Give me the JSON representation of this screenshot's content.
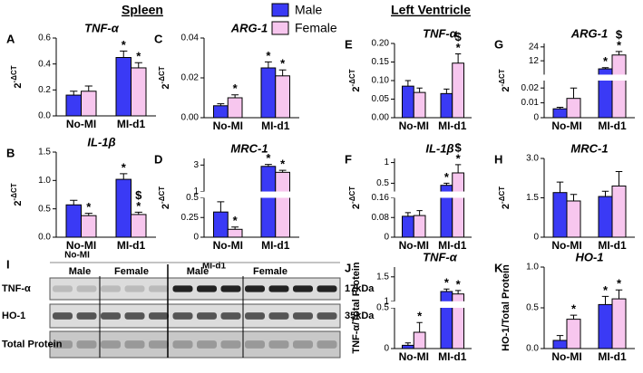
{
  "header": {
    "left": "Spleen",
    "right": "Left Ventricle"
  },
  "legend": [
    {
      "name": "Male",
      "color": "#3a3af5"
    },
    {
      "name": "Female",
      "color": "#f7c6ee"
    }
  ],
  "chart_data": [
    {
      "type": "bar",
      "panel": "A",
      "title": "TNF-α",
      "ylabel": "2",
      "ylabel_sup": "-ΔCT",
      "categories": [
        "No-MI",
        "MI-d1"
      ],
      "series": [
        {
          "color": "#3a3af5",
          "values": [
            0.16,
            0.45
          ],
          "errors": [
            0.03,
            0.05
          ],
          "sig": [
            null,
            "*"
          ]
        },
        {
          "color": "#f7c6ee",
          "values": [
            0.19,
            0.37
          ],
          "errors": [
            0.04,
            0.04
          ],
          "sig": [
            null,
            "*"
          ]
        }
      ],
      "ylim": [
        0,
        0.6
      ],
      "yticks": [
        {
          "value": 0,
          "label": "0.0"
        },
        0.2,
        0.4,
        0.6
      ]
    },
    {
      "type": "bar",
      "panel": "B",
      "title": "IL-1β",
      "ylabel": "2",
      "ylabel_sup": "-ΔCT",
      "categories": [
        "No-MI",
        "MI-d1"
      ],
      "series": [
        {
          "color": "#3a3af5",
          "values": [
            0.57,
            1.02
          ],
          "errors": [
            0.08,
            0.1
          ],
          "sig": [
            null,
            "*"
          ]
        },
        {
          "color": "#f7c6ee",
          "values": [
            0.38,
            0.4
          ],
          "errors": [
            0.04,
            0.04
          ],
          "sig": [
            "*",
            [
              "*",
              "$"
            ]
          ]
        }
      ],
      "ylim": [
        0,
        1.5
      ],
      "yticks": [
        {
          "value": 0,
          "label": "0.0"
        },
        0.5,
        {
          "value": 1,
          "label": "1.0"
        },
        1.5
      ]
    },
    {
      "type": "bar",
      "panel": "C",
      "title": "ARG-1",
      "ylabel": "2",
      "ylabel_sup": "-ΔCT",
      "categories": [
        "No-MI",
        "MI-d1"
      ],
      "series": [
        {
          "color": "#3a3af5",
          "values": [
            0.006,
            0.025
          ],
          "errors": [
            0.001,
            0.003
          ],
          "sig": [
            null,
            "*"
          ]
        },
        {
          "color": "#f7c6ee",
          "values": [
            0.01,
            0.021
          ],
          "errors": [
            0.0015,
            0.003
          ],
          "sig": [
            "*",
            "*"
          ]
        }
      ],
      "ylim": [
        0,
        0.04
      ],
      "yticks": [
        {
          "value": 0,
          "label": "0.00"
        },
        0.02,
        0.04
      ]
    },
    {
      "type": "bar",
      "panel": "D",
      "title": "MRC-1",
      "ylabel": "2",
      "ylabel_sup": "-ΔCT",
      "categories": [
        "No-MI",
        "MI-d1"
      ],
      "series": [
        {
          "color": "#3a3af5",
          "values": [
            0.32,
            2.9
          ],
          "errors": [
            0.13,
            0.15
          ],
          "sig": [
            null,
            "*"
          ]
        },
        {
          "color": "#f7c6ee",
          "values": [
            0.1,
            2.45
          ],
          "errors": [
            0.03,
            0.15
          ],
          "sig": [
            "*",
            "*"
          ]
        }
      ],
      "ylim": [
        0,
        3.5
      ],
      "ybreak": [
        0.5,
        1
      ],
      "yticks": [
        0,
        0.25,
        0.5,
        1,
        3
      ]
    },
    {
      "type": "bar",
      "panel": "E",
      "title": "TNF-α",
      "ylabel": "2",
      "ylabel_sup": "-ΔCT",
      "categories": [
        "No-MI",
        "MI-d1"
      ],
      "series": [
        {
          "color": "#3a3af5",
          "values": [
            0.085,
            0.065
          ],
          "errors": [
            0.015,
            0.012
          ],
          "sig": [
            null,
            null
          ]
        },
        {
          "color": "#f7c6ee",
          "values": [
            0.068,
            0.147
          ],
          "errors": [
            0.012,
            0.025
          ],
          "sig": [
            null,
            [
              "*",
              "$"
            ]
          ]
        }
      ],
      "ylim": [
        0,
        0.2
      ],
      "yticks": [
        {
          "value": 0,
          "label": "0.00"
        },
        0.05,
        {
          "value": 0.1,
          "label": "0.10"
        },
        0.15,
        {
          "value": 0.2,
          "label": "0.20"
        }
      ]
    },
    {
      "type": "bar",
      "panel": "F",
      "title": "IL-1β",
      "ylabel": "2",
      "ylabel_sup": "-ΔCT",
      "categories": [
        "No-MI",
        "MI-d1"
      ],
      "series": [
        {
          "color": "#3a3af5",
          "values": [
            0.085,
            0.45
          ],
          "errors": [
            0.015,
            0.05
          ],
          "sig": [
            null,
            "*"
          ]
        },
        {
          "color": "#f7c6ee",
          "values": [
            0.088,
            0.75
          ],
          "errors": [
            0.02,
            0.2
          ],
          "sig": [
            null,
            [
              "*",
              "$"
            ]
          ]
        }
      ],
      "ylim": [
        0,
        1.1
      ],
      "ybreak": [
        0.16,
        0.3
      ],
      "yticks": [
        0,
        0.08,
        0.16,
        0.5,
        1
      ]
    },
    {
      "type": "bar",
      "panel": "G",
      "title": "ARG-1",
      "ylabel": "2",
      "ylabel_sup": "-ΔCT",
      "categories": [
        "No-MI",
        "MI-d1"
      ],
      "series": [
        {
          "color": "#3a3af5",
          "values": [
            0.006,
            5
          ],
          "errors": [
            0.001,
            1
          ],
          "sig": [
            null,
            "*"
          ]
        },
        {
          "color": "#f7c6ee",
          "values": [
            0.013,
            17
          ],
          "errors": [
            0.007,
            3
          ],
          "sig": [
            null,
            [
              "*",
              "$"
            ]
          ]
        }
      ],
      "ylim": [
        0,
        27
      ],
      "ybreak": [
        0.025,
        0
      ],
      "yticks": [
        0,
        0.01,
        0.02,
        12,
        24
      ]
    },
    {
      "type": "bar",
      "panel": "H",
      "title": "MRC-1",
      "ylabel": "2",
      "ylabel_sup": "-ΔCT",
      "categories": [
        "No-MI",
        "MI-d1"
      ],
      "series": [
        {
          "color": "#3a3af5",
          "values": [
            1.7,
            1.55
          ],
          "errors": [
            0.4,
            0.2
          ],
          "sig": [
            null,
            null
          ]
        },
        {
          "color": "#f7c6ee",
          "values": [
            1.38,
            1.95
          ],
          "errors": [
            0.25,
            0.55
          ],
          "sig": [
            null,
            null
          ]
        }
      ],
      "ylim": [
        0,
        3
      ],
      "yticks": [
        0,
        1.5,
        {
          "value": 3,
          "label": "3.0"
        }
      ]
    },
    {
      "type": "bar",
      "panel": "J",
      "title": "TNF-α",
      "ylabel": "TNF-α/Total Protein",
      "categories": [
        "No-MI",
        "MI-d1"
      ],
      "series": [
        {
          "color": "#3a3af5",
          "values": [
            0.04,
            1.2
          ],
          "errors": [
            0.03,
            0.05
          ],
          "sig": [
            null,
            "*"
          ]
        },
        {
          "color": "#f7c6ee",
          "values": [
            0.2,
            1.15
          ],
          "errors": [
            0.12,
            0.07
          ],
          "sig": [
            "*",
            "*"
          ]
        }
      ],
      "ylim": [
        0,
        1.7
      ],
      "ybreak": [
        0.5,
        1
      ],
      "yticks": [
        0,
        0.5,
        1,
        1.5
      ]
    },
    {
      "type": "bar",
      "panel": "K",
      "title": "HO-1",
      "ylabel": "HO-1/Total Protein",
      "categories": [
        "No-MI",
        "MI-d1"
      ],
      "series": [
        {
          "color": "#3a3af5",
          "values": [
            0.1,
            0.54
          ],
          "errors": [
            0.06,
            0.1
          ],
          "sig": [
            null,
            "*"
          ]
        },
        {
          "color": "#f7c6ee",
          "values": [
            0.36,
            0.61
          ],
          "errors": [
            0.05,
            0.11
          ],
          "sig": [
            "*",
            "*"
          ]
        }
      ],
      "ylim": [
        0,
        1
      ],
      "yticks": [
        {
          "value": 0,
          "label": "0.0"
        },
        0.5,
        {
          "value": 1,
          "label": "1.0"
        }
      ]
    }
  ],
  "blot": {
    "panel": "I",
    "groups": [
      "No-MI",
      "MI-d1"
    ],
    "lanes": [
      "Male",
      "Female",
      "Male",
      "Female"
    ],
    "rows": [
      {
        "name": "TNF-α",
        "size": "17kDa"
      },
      {
        "name": "HO-1",
        "size": "35kDa"
      },
      {
        "name": "Total Protein"
      }
    ]
  }
}
